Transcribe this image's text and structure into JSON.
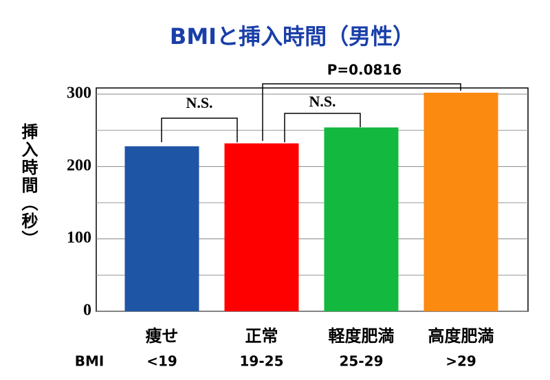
{
  "chart_data": {
    "type": "bar",
    "title": "BMIと挿入時間（男性）",
    "y_label": "挿入時間（秒）",
    "categories": [
      "痩せ",
      "正常",
      "軽度肥満",
      "高度肥満"
    ],
    "bmi_label": "BMI",
    "bmi_ranges": [
      "<19",
      "19-25",
      "25-29",
      ">29"
    ],
    "values": [
      228,
      232,
      254,
      302
    ],
    "colors": [
      "#1f55a5",
      "#ff0000",
      "#13b83e",
      "#fb8a10"
    ],
    "ylim": [
      0,
      300
    ],
    "yticks": [
      0,
      100,
      200,
      300
    ],
    "minor_yticks": [
      50,
      150,
      250
    ],
    "grid": true,
    "annotations": [
      "N.S.",
      "N.S.",
      "P=0.0816"
    ]
  }
}
